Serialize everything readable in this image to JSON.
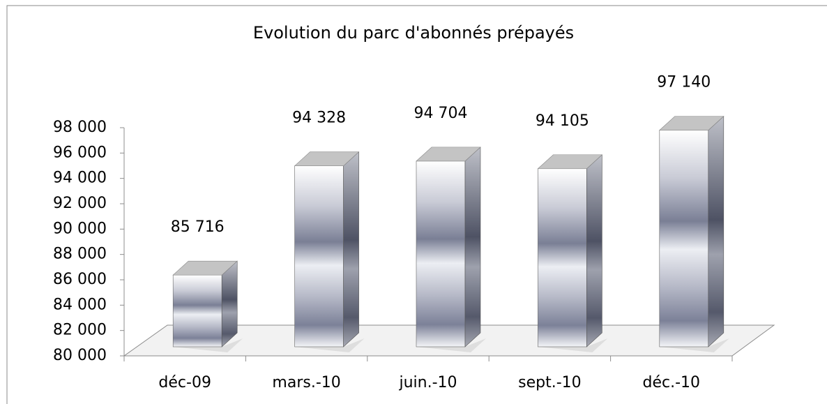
{
  "chart_data": {
    "type": "bar3d",
    "title": "Evolution du parc d'abonnés prépayés",
    "categories": [
      "déc-09",
      "mars.-10",
      "juin.-10",
      "sept.-10",
      "déc.-10"
    ],
    "values": [
      85716,
      94328,
      94704,
      94105,
      97140
    ],
    "value_labels": [
      "85 716",
      "94 328",
      "94 704",
      "94 105",
      "97 140"
    ],
    "ylim": [
      80000,
      98000
    ],
    "yticks": [
      {
        "value": 80000,
        "label": "80 000"
      },
      {
        "value": 82000,
        "label": "82 000"
      },
      {
        "value": 84000,
        "label": "84 000"
      },
      {
        "value": 86000,
        "label": "86 000"
      },
      {
        "value": 88000,
        "label": "88 000"
      },
      {
        "value": 90000,
        "label": "90 000"
      },
      {
        "value": 92000,
        "label": "92 000"
      },
      {
        "value": 94000,
        "label": "94 000"
      },
      {
        "value": 96000,
        "label": "96 000"
      },
      {
        "value": 98000,
        "label": "98 000"
      }
    ],
    "grid": false
  }
}
